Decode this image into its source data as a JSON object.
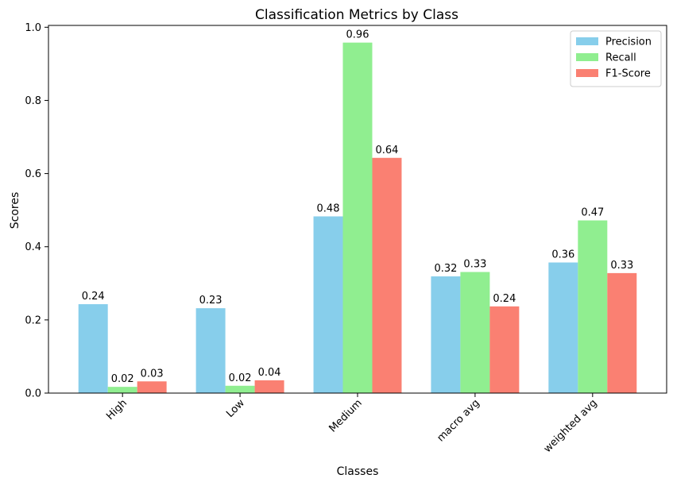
{
  "chart_data": {
    "type": "bar",
    "title": "Classification Metrics by Class",
    "xlabel": "Classes",
    "ylabel": "Scores",
    "categories": [
      "High",
      "Low",
      "Medium",
      "macro avg",
      "weighted avg"
    ],
    "series": [
      {
        "name": "Precision",
        "color": "#87CEEB",
        "values": [
          0.243,
          0.232,
          0.483,
          0.319,
          0.357
        ],
        "labels": [
          "0.24",
          "0.23",
          "0.48",
          "0.32",
          "0.36"
        ]
      },
      {
        "name": "Recall",
        "color": "#90EE90",
        "values": [
          0.017,
          0.02,
          0.958,
          0.331,
          0.472
        ],
        "labels": [
          "0.02",
          "0.02",
          "0.96",
          "0.33",
          "0.47"
        ]
      },
      {
        "name": "F1-Score",
        "color": "#FA8072",
        "values": [
          0.032,
          0.035,
          0.643,
          0.237,
          0.328
        ],
        "labels": [
          "0.03",
          "0.04",
          "0.64",
          "0.24",
          "0.33"
        ]
      }
    ],
    "yticks": [
      0.0,
      0.2,
      0.4,
      0.6,
      0.8,
      1.0
    ],
    "ytick_labels": [
      "0.0",
      "0.2",
      "0.4",
      "0.6",
      "0.8",
      "1.0"
    ],
    "ylim": [
      0,
      1.005
    ],
    "grid": false,
    "legend_position": "top-right",
    "xtick_rotation": 45
  }
}
